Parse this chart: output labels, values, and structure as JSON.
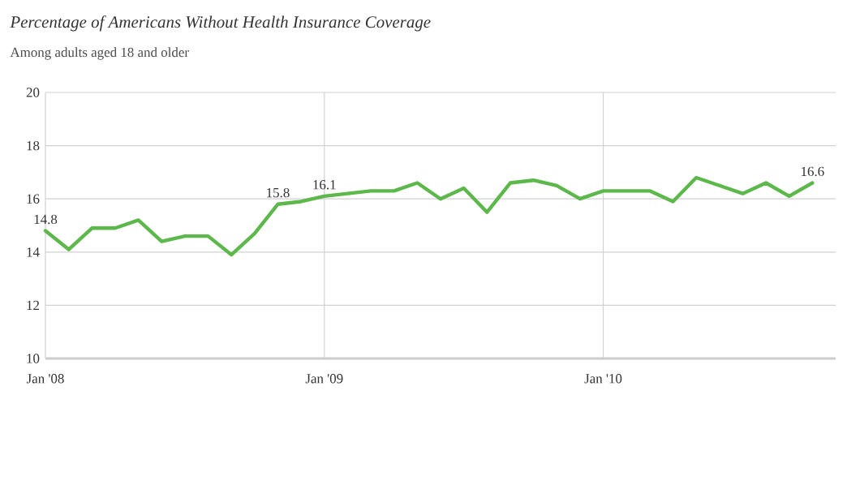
{
  "chart_data": {
    "type": "line",
    "title": "Percentage of Americans Without Health Insurance Coverage",
    "subtitle": "Among adults aged 18 and older",
    "x": [
      "2008-01",
      "2008-02",
      "2008-03",
      "2008-04",
      "2008-05",
      "2008-06",
      "2008-07",
      "2008-08",
      "2008-09",
      "2008-10",
      "2008-11",
      "2008-12",
      "2009-01",
      "2009-02",
      "2009-03",
      "2009-04",
      "2009-05",
      "2009-06",
      "2009-07",
      "2009-08",
      "2009-09",
      "2009-10",
      "2009-11",
      "2009-12",
      "2010-01",
      "2010-03",
      "2010-04",
      "2010-05",
      "2010-06",
      "2010-07",
      "2010-08",
      "2010-09",
      "2010-10"
    ],
    "series": [
      {
        "color": "#5cb84a",
        "values": [
          14.8,
          14.1,
          14.9,
          14.9,
          15.2,
          14.4,
          14.6,
          14.6,
          13.9,
          14.7,
          15.8,
          15.9,
          16.1,
          16.2,
          16.3,
          16.3,
          16.6,
          16.0,
          16.4,
          15.5,
          16.6,
          16.7,
          16.5,
          16.0,
          16.3,
          16.3,
          15.9,
          16.8,
          16.5,
          16.2,
          16.6,
          16.1,
          16.6
        ]
      }
    ],
    "xlim": [
      "2008-01",
      "2010-11"
    ],
    "xticks": [
      {
        "value": "2008-01",
        "label": "Jan '08"
      },
      {
        "value": "2009-01",
        "label": "Jan '09"
      },
      {
        "value": "2010-01",
        "label": "Jan '10"
      }
    ],
    "ylim": [
      10,
      20
    ],
    "yticks": [
      10,
      12,
      14,
      16,
      18,
      20
    ],
    "grid": true,
    "marker": "none",
    "line_style": "solid",
    "annotations": [
      {
        "text": "14.8",
        "x": "2008-01",
        "y": 14.8
      },
      {
        "text": "15.8",
        "x": "2008-11",
        "y": 15.8
      },
      {
        "text": "16.1",
        "x": "2009-01",
        "y": 16.1
      },
      {
        "text": "16.6",
        "x": "2010-10",
        "y": 16.6
      }
    ]
  }
}
